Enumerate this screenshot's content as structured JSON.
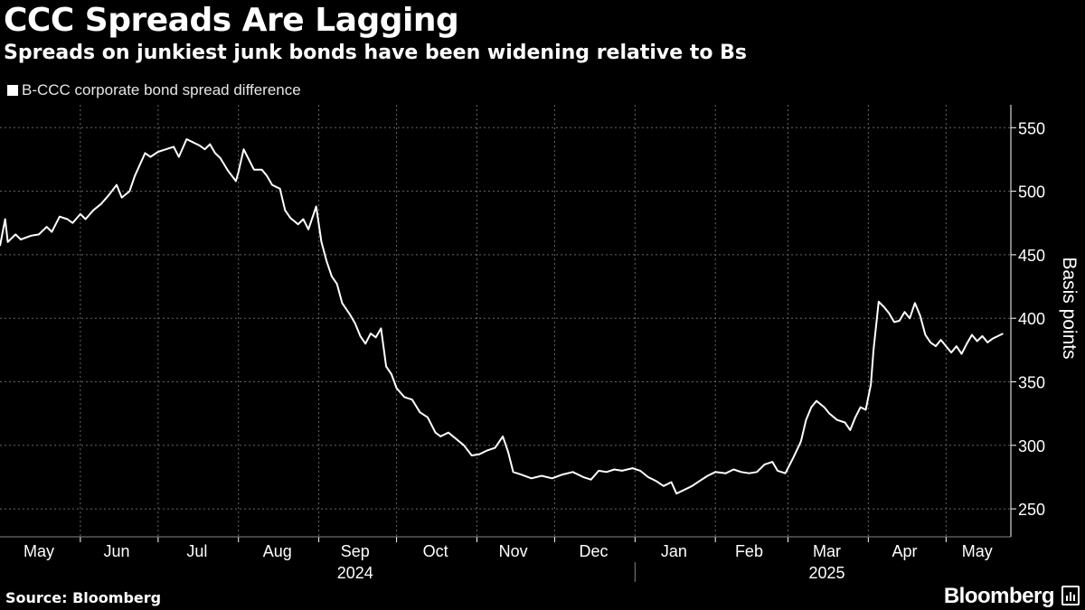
{
  "title": "CCC Spreads Are Lagging",
  "subtitle": "Spreads on junkiest junk bonds have been widening relative to Bs",
  "source": "Source: Bloomberg",
  "brand": "Bloomberg",
  "brand_icon": "bloomberg-chart-icon",
  "colors": {
    "background": "#000000",
    "line": "#ffffff",
    "grid": "#666666",
    "text": "#ffffff"
  },
  "chart_data": {
    "type": "line",
    "legend": {
      "position": "top-left",
      "entries": [
        "B-CCC corporate bond spread difference"
      ]
    },
    "ylabel": "Basis points",
    "ylim": [
      228,
      568
    ],
    "yticks": [
      250,
      300,
      350,
      400,
      450,
      500,
      550
    ],
    "xlim": [
      "2024-05-01",
      "2025-05-26"
    ],
    "month_labels": [
      {
        "label": "May",
        "date": "2024-05-16"
      },
      {
        "label": "Jun",
        "date": "2024-06-15"
      },
      {
        "label": "Jul",
        "date": "2024-07-16"
      },
      {
        "label": "Aug",
        "date": "2024-08-16"
      },
      {
        "label": "Sep",
        "date": "2024-09-15"
      },
      {
        "label": "Oct",
        "date": "2024-10-16"
      },
      {
        "label": "Nov",
        "date": "2024-11-15"
      },
      {
        "label": "Dec",
        "date": "2024-12-16"
      },
      {
        "label": "Jan",
        "date": "2025-01-16"
      },
      {
        "label": "Feb",
        "date": "2025-02-14"
      },
      {
        "label": "Mar",
        "date": "2025-03-16"
      },
      {
        "label": "Apr",
        "date": "2025-04-15"
      },
      {
        "label": "May",
        "date": "2025-05-13"
      }
    ],
    "year_labels": [
      {
        "label": "2024",
        "date": "2024-09-15"
      },
      {
        "label": "2025",
        "date": "2025-03-16"
      }
    ],
    "year_separator": "2025-01-01",
    "grid": true,
    "series": [
      {
        "name": "B-CCC corporate bond spread difference",
        "points": [
          [
            "2024-05-01",
            457
          ],
          [
            "2024-05-03",
            478
          ],
          [
            "2024-05-04",
            460
          ],
          [
            "2024-05-07",
            466
          ],
          [
            "2024-05-09",
            462
          ],
          [
            "2024-05-13",
            465
          ],
          [
            "2024-05-16",
            466
          ],
          [
            "2024-05-19",
            472
          ],
          [
            "2024-05-21",
            468
          ],
          [
            "2024-05-24",
            480
          ],
          [
            "2024-05-27",
            478
          ],
          [
            "2024-05-29",
            475
          ],
          [
            "2024-06-01",
            482
          ],
          [
            "2024-06-03",
            478
          ],
          [
            "2024-06-06",
            485
          ],
          [
            "2024-06-09",
            490
          ],
          [
            "2024-06-12",
            497
          ],
          [
            "2024-06-15",
            505
          ],
          [
            "2024-06-17",
            495
          ],
          [
            "2024-06-20",
            500
          ],
          [
            "2024-06-22",
            512
          ],
          [
            "2024-06-26",
            530
          ],
          [
            "2024-06-28",
            527
          ],
          [
            "2024-07-01",
            531
          ],
          [
            "2024-07-04",
            533
          ],
          [
            "2024-07-07",
            535
          ],
          [
            "2024-07-09",
            527
          ],
          [
            "2024-07-12",
            541
          ],
          [
            "2024-07-14",
            539
          ],
          [
            "2024-07-17",
            536
          ],
          [
            "2024-07-19",
            533
          ],
          [
            "2024-07-21",
            537
          ],
          [
            "2024-07-23",
            530
          ],
          [
            "2024-07-25",
            526
          ],
          [
            "2024-07-28",
            516
          ],
          [
            "2024-07-31",
            508
          ],
          [
            "2024-08-01",
            515
          ],
          [
            "2024-08-03",
            533
          ],
          [
            "2024-08-05",
            525
          ],
          [
            "2024-08-07",
            517
          ],
          [
            "2024-08-10",
            517
          ],
          [
            "2024-08-12",
            512
          ],
          [
            "2024-08-14",
            505
          ],
          [
            "2024-08-17",
            502
          ],
          [
            "2024-08-19",
            485
          ],
          [
            "2024-08-21",
            479
          ],
          [
            "2024-08-24",
            474
          ],
          [
            "2024-08-26",
            478
          ],
          [
            "2024-08-28",
            470
          ],
          [
            "2024-08-31",
            488
          ],
          [
            "2024-09-02",
            460
          ],
          [
            "2024-09-04",
            445
          ],
          [
            "2024-09-06",
            433
          ],
          [
            "2024-09-08",
            427
          ],
          [
            "2024-09-10",
            412
          ],
          [
            "2024-09-13",
            403
          ],
          [
            "2024-09-15",
            396
          ],
          [
            "2024-09-17",
            386
          ],
          [
            "2024-09-19",
            380
          ],
          [
            "2024-09-21",
            388
          ],
          [
            "2024-09-23",
            385
          ],
          [
            "2024-09-25",
            392
          ],
          [
            "2024-09-27",
            362
          ],
          [
            "2024-09-29",
            356
          ],
          [
            "2024-10-01",
            345
          ],
          [
            "2024-10-04",
            338
          ],
          [
            "2024-10-07",
            336
          ],
          [
            "2024-10-10",
            326
          ],
          [
            "2024-10-13",
            322
          ],
          [
            "2024-10-16",
            310
          ],
          [
            "2024-10-18",
            307
          ],
          [
            "2024-10-21",
            310
          ],
          [
            "2024-10-24",
            305
          ],
          [
            "2024-10-27",
            300
          ],
          [
            "2024-10-30",
            292
          ],
          [
            "2024-11-02",
            293
          ],
          [
            "2024-11-05",
            296
          ],
          [
            "2024-11-08",
            298
          ],
          [
            "2024-11-11",
            307
          ],
          [
            "2024-11-13",
            295
          ],
          [
            "2024-11-15",
            279
          ],
          [
            "2024-11-18",
            277
          ],
          [
            "2024-11-22",
            274
          ],
          [
            "2024-11-26",
            276
          ],
          [
            "2024-11-30",
            274
          ],
          [
            "2024-12-04",
            277
          ],
          [
            "2024-12-08",
            279
          ],
          [
            "2024-12-12",
            275
          ],
          [
            "2024-12-15",
            273
          ],
          [
            "2024-12-18",
            280
          ],
          [
            "2024-12-21",
            279
          ],
          [
            "2024-12-24",
            281
          ],
          [
            "2024-12-27",
            280
          ],
          [
            "2024-12-31",
            282
          ],
          [
            "2025-01-03",
            280
          ],
          [
            "2025-01-06",
            275
          ],
          [
            "2025-01-09",
            272
          ],
          [
            "2025-01-12",
            268
          ],
          [
            "2025-01-15",
            271
          ],
          [
            "2025-01-17",
            262
          ],
          [
            "2025-01-20",
            265
          ],
          [
            "2025-01-23",
            268
          ],
          [
            "2025-01-26",
            272
          ],
          [
            "2025-01-29",
            276
          ],
          [
            "2025-02-01",
            279
          ],
          [
            "2025-02-05",
            278
          ],
          [
            "2025-02-08",
            281
          ],
          [
            "2025-02-11",
            279
          ],
          [
            "2025-02-14",
            278
          ],
          [
            "2025-02-17",
            279
          ],
          [
            "2025-02-20",
            285
          ],
          [
            "2025-02-23",
            287
          ],
          [
            "2025-02-25",
            280
          ],
          [
            "2025-02-28",
            278
          ],
          [
            "2025-03-03",
            290
          ],
          [
            "2025-03-06",
            303
          ],
          [
            "2025-03-08",
            320
          ],
          [
            "2025-03-10",
            330
          ],
          [
            "2025-03-12",
            335
          ],
          [
            "2025-03-15",
            330
          ],
          [
            "2025-03-17",
            325
          ],
          [
            "2025-03-20",
            320
          ],
          [
            "2025-03-23",
            318
          ],
          [
            "2025-03-25",
            312
          ],
          [
            "2025-03-27",
            322
          ],
          [
            "2025-03-29",
            330
          ],
          [
            "2025-03-31",
            328
          ],
          [
            "2025-04-02",
            348
          ],
          [
            "2025-04-03",
            375
          ],
          [
            "2025-04-05",
            413
          ],
          [
            "2025-04-07",
            409
          ],
          [
            "2025-04-09",
            404
          ],
          [
            "2025-04-11",
            397
          ],
          [
            "2025-04-13",
            398
          ],
          [
            "2025-04-15",
            405
          ],
          [
            "2025-04-17",
            400
          ],
          [
            "2025-04-19",
            412
          ],
          [
            "2025-04-21",
            402
          ],
          [
            "2025-04-23",
            387
          ],
          [
            "2025-04-25",
            381
          ],
          [
            "2025-04-27",
            378
          ],
          [
            "2025-04-29",
            383
          ],
          [
            "2025-05-01",
            378
          ],
          [
            "2025-05-03",
            373
          ],
          [
            "2025-05-05",
            378
          ],
          [
            "2025-05-07",
            372
          ],
          [
            "2025-05-09",
            380
          ],
          [
            "2025-05-11",
            387
          ],
          [
            "2025-05-13",
            382
          ],
          [
            "2025-05-15",
            386
          ],
          [
            "2025-05-17",
            381
          ],
          [
            "2025-05-19",
            384
          ],
          [
            "2025-05-21",
            386
          ],
          [
            "2025-05-23",
            388
          ]
        ]
      }
    ]
  }
}
